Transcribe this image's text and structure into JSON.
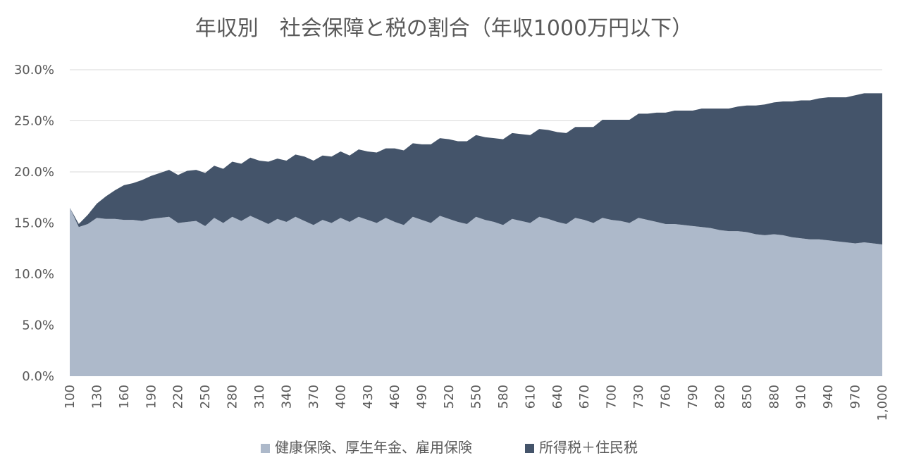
{
  "chart_data": {
    "type": "area",
    "stacked": true,
    "title": "年収別　社会保障と税の割合（年収1000万円以下）",
    "xlabel": "",
    "ylabel": "",
    "ylim": [
      0,
      0.3
    ],
    "y_ticks": [
      0,
      0.05,
      0.1,
      0.15,
      0.2,
      0.25,
      0.3
    ],
    "y_tick_labels": [
      "0.0%",
      "5.0%",
      "10.0%",
      "15.0%",
      "20.0%",
      "25.0%",
      "30.0%"
    ],
    "x": [
      100,
      110,
      120,
      130,
      140,
      150,
      160,
      170,
      180,
      190,
      200,
      210,
      220,
      230,
      240,
      250,
      260,
      270,
      280,
      290,
      300,
      310,
      320,
      330,
      340,
      350,
      360,
      370,
      380,
      390,
      400,
      410,
      420,
      430,
      440,
      450,
      460,
      470,
      480,
      490,
      500,
      510,
      520,
      530,
      540,
      550,
      560,
      570,
      580,
      590,
      600,
      610,
      620,
      630,
      640,
      650,
      660,
      670,
      680,
      690,
      700,
      710,
      720,
      730,
      740,
      750,
      760,
      770,
      780,
      790,
      800,
      810,
      820,
      830,
      840,
      850,
      860,
      870,
      880,
      890,
      900,
      910,
      920,
      930,
      940,
      950,
      960,
      970,
      980,
      990,
      1000
    ],
    "x_tick_values": [
      100,
      130,
      160,
      190,
      220,
      250,
      280,
      310,
      340,
      370,
      400,
      430,
      460,
      490,
      520,
      550,
      580,
      610,
      640,
      670,
      700,
      730,
      760,
      790,
      820,
      850,
      880,
      910,
      940,
      970,
      1000
    ],
    "x_tick_labels": [
      "100",
      "130",
      "160",
      "190",
      "220",
      "250",
      "280",
      "310",
      "340",
      "370",
      "400",
      "430",
      "460",
      "490",
      "520",
      "550",
      "580",
      "610",
      "640",
      "670",
      "700",
      "730",
      "760",
      "790",
      "820",
      "850",
      "880",
      "910",
      "940",
      "970",
      "1,000"
    ],
    "series": [
      {
        "name": "健康保険、厚生年金、雇用保険",
        "color": "#adb9ca",
        "values": [
          0.165,
          0.146,
          0.149,
          0.155,
          0.154,
          0.154,
          0.153,
          0.153,
          0.152,
          0.154,
          0.155,
          0.156,
          0.15,
          0.151,
          0.152,
          0.147,
          0.155,
          0.15,
          0.156,
          0.152,
          0.157,
          0.153,
          0.149,
          0.154,
          0.151,
          0.156,
          0.152,
          0.148,
          0.153,
          0.15,
          0.155,
          0.151,
          0.156,
          0.153,
          0.15,
          0.155,
          0.151,
          0.148,
          0.156,
          0.153,
          0.15,
          0.157,
          0.154,
          0.151,
          0.149,
          0.156,
          0.153,
          0.151,
          0.148,
          0.154,
          0.152,
          0.15,
          0.156,
          0.154,
          0.151,
          0.149,
          0.155,
          0.153,
          0.15,
          0.155,
          0.153,
          0.152,
          0.15,
          0.155,
          0.153,
          0.151,
          0.149,
          0.149,
          0.148,
          0.147,
          0.146,
          0.145,
          0.143,
          0.142,
          0.142,
          0.141,
          0.139,
          0.138,
          0.139,
          0.138,
          0.136,
          0.135,
          0.134,
          0.134,
          0.133,
          0.132,
          0.131,
          0.13,
          0.131,
          0.13,
          0.129
        ]
      },
      {
        "name": "所得税＋住民税",
        "color": "#44546a",
        "values": [
          0.0,
          0.003,
          0.009,
          0.014,
          0.022,
          0.028,
          0.034,
          0.036,
          0.04,
          0.042,
          0.044,
          0.046,
          0.047,
          0.05,
          0.05,
          0.052,
          0.051,
          0.053,
          0.054,
          0.056,
          0.057,
          0.058,
          0.061,
          0.059,
          0.06,
          0.061,
          0.063,
          0.063,
          0.063,
          0.065,
          0.065,
          0.065,
          0.066,
          0.067,
          0.069,
          0.068,
          0.072,
          0.073,
          0.072,
          0.074,
          0.077,
          0.076,
          0.078,
          0.079,
          0.081,
          0.08,
          0.081,
          0.082,
          0.084,
          0.084,
          0.085,
          0.086,
          0.086,
          0.087,
          0.088,
          0.089,
          0.089,
          0.091,
          0.094,
          0.096,
          0.098,
          0.099,
          0.101,
          0.102,
          0.104,
          0.107,
          0.109,
          0.111,
          0.112,
          0.113,
          0.116,
          0.117,
          0.119,
          0.12,
          0.122,
          0.124,
          0.126,
          0.128,
          0.129,
          0.131,
          0.133,
          0.135,
          0.136,
          0.138,
          0.14,
          0.141,
          0.142,
          0.145,
          0.146,
          0.147,
          0.148
        ]
      }
    ],
    "legend_position": "bottom"
  }
}
